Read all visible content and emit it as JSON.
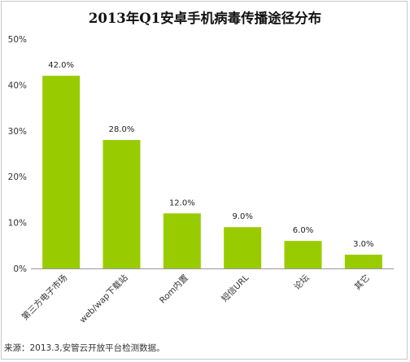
{
  "chart_data": {
    "type": "bar",
    "title": "2013年Q1安卓手机病毒传播途径分布",
    "categories": [
      "第三方电子市场",
      "web/wap下载站",
      "Rom内置",
      "短信URL",
      "论坛",
      "其它"
    ],
    "values": [
      42.0,
      28.0,
      12.0,
      9.0,
      6.0,
      3.0
    ],
    "data_labels": [
      "42.0%",
      "28.0%",
      "12.0%",
      "9.0%",
      "6.0%",
      "3.0%"
    ],
    "y_ticks": [
      "0%",
      "10%",
      "20%",
      "30%",
      "40%",
      "50%"
    ],
    "ylim": [
      0,
      50
    ],
    "xlabel": "",
    "ylabel": "",
    "grid": false,
    "legend": "none",
    "bar_color": "#99cc00"
  },
  "source": "来源：2013.3,安管云开放平台检测数据。"
}
